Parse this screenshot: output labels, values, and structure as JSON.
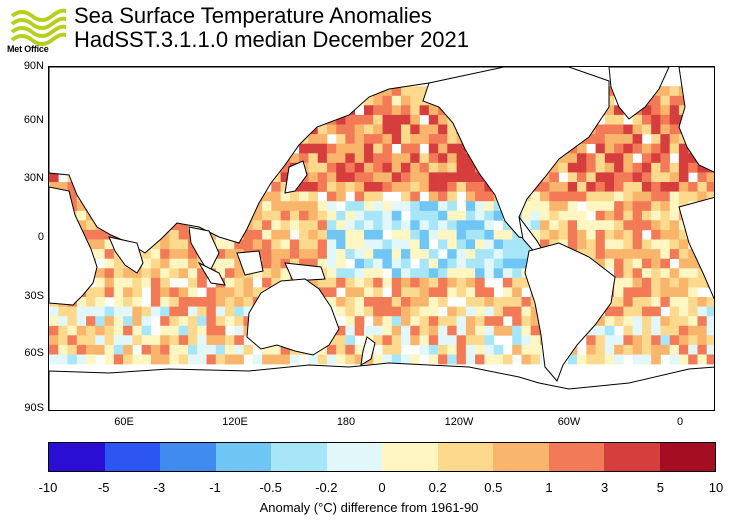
{
  "logo": {
    "text": "Met Office",
    "color": "#b6cf1d"
  },
  "title": {
    "line1": "Sea Surface Temperature Anomalies",
    "line2": "HadSST.3.1.1.0 median December 2021"
  },
  "map": {
    "lat_labels": [
      "90N",
      "60N",
      "30N",
      "0",
      "30S",
      "60S",
      "90S"
    ],
    "lon_labels": [
      "60E",
      "120E",
      "180",
      "120W",
      "60W",
      "0"
    ],
    "coastline_color": "#000000"
  },
  "colorbar": {
    "colors": [
      "#2a0ed4",
      "#2d55f2",
      "#3f8cee",
      "#6fc6f5",
      "#a7e6f8",
      "#e2f7fa",
      "#fff6c2",
      "#fdd98e",
      "#f9b56c",
      "#f27a56",
      "#d63e3e",
      "#a50d23"
    ],
    "labels": [
      "-10",
      "-5",
      "-3",
      "-1",
      "-0.5",
      "-0.2",
      "0",
      "0.2",
      "0.5",
      "1",
      "3",
      "5",
      "10"
    ],
    "caption": "Anomaly (°C) difference from 1961-90"
  }
}
